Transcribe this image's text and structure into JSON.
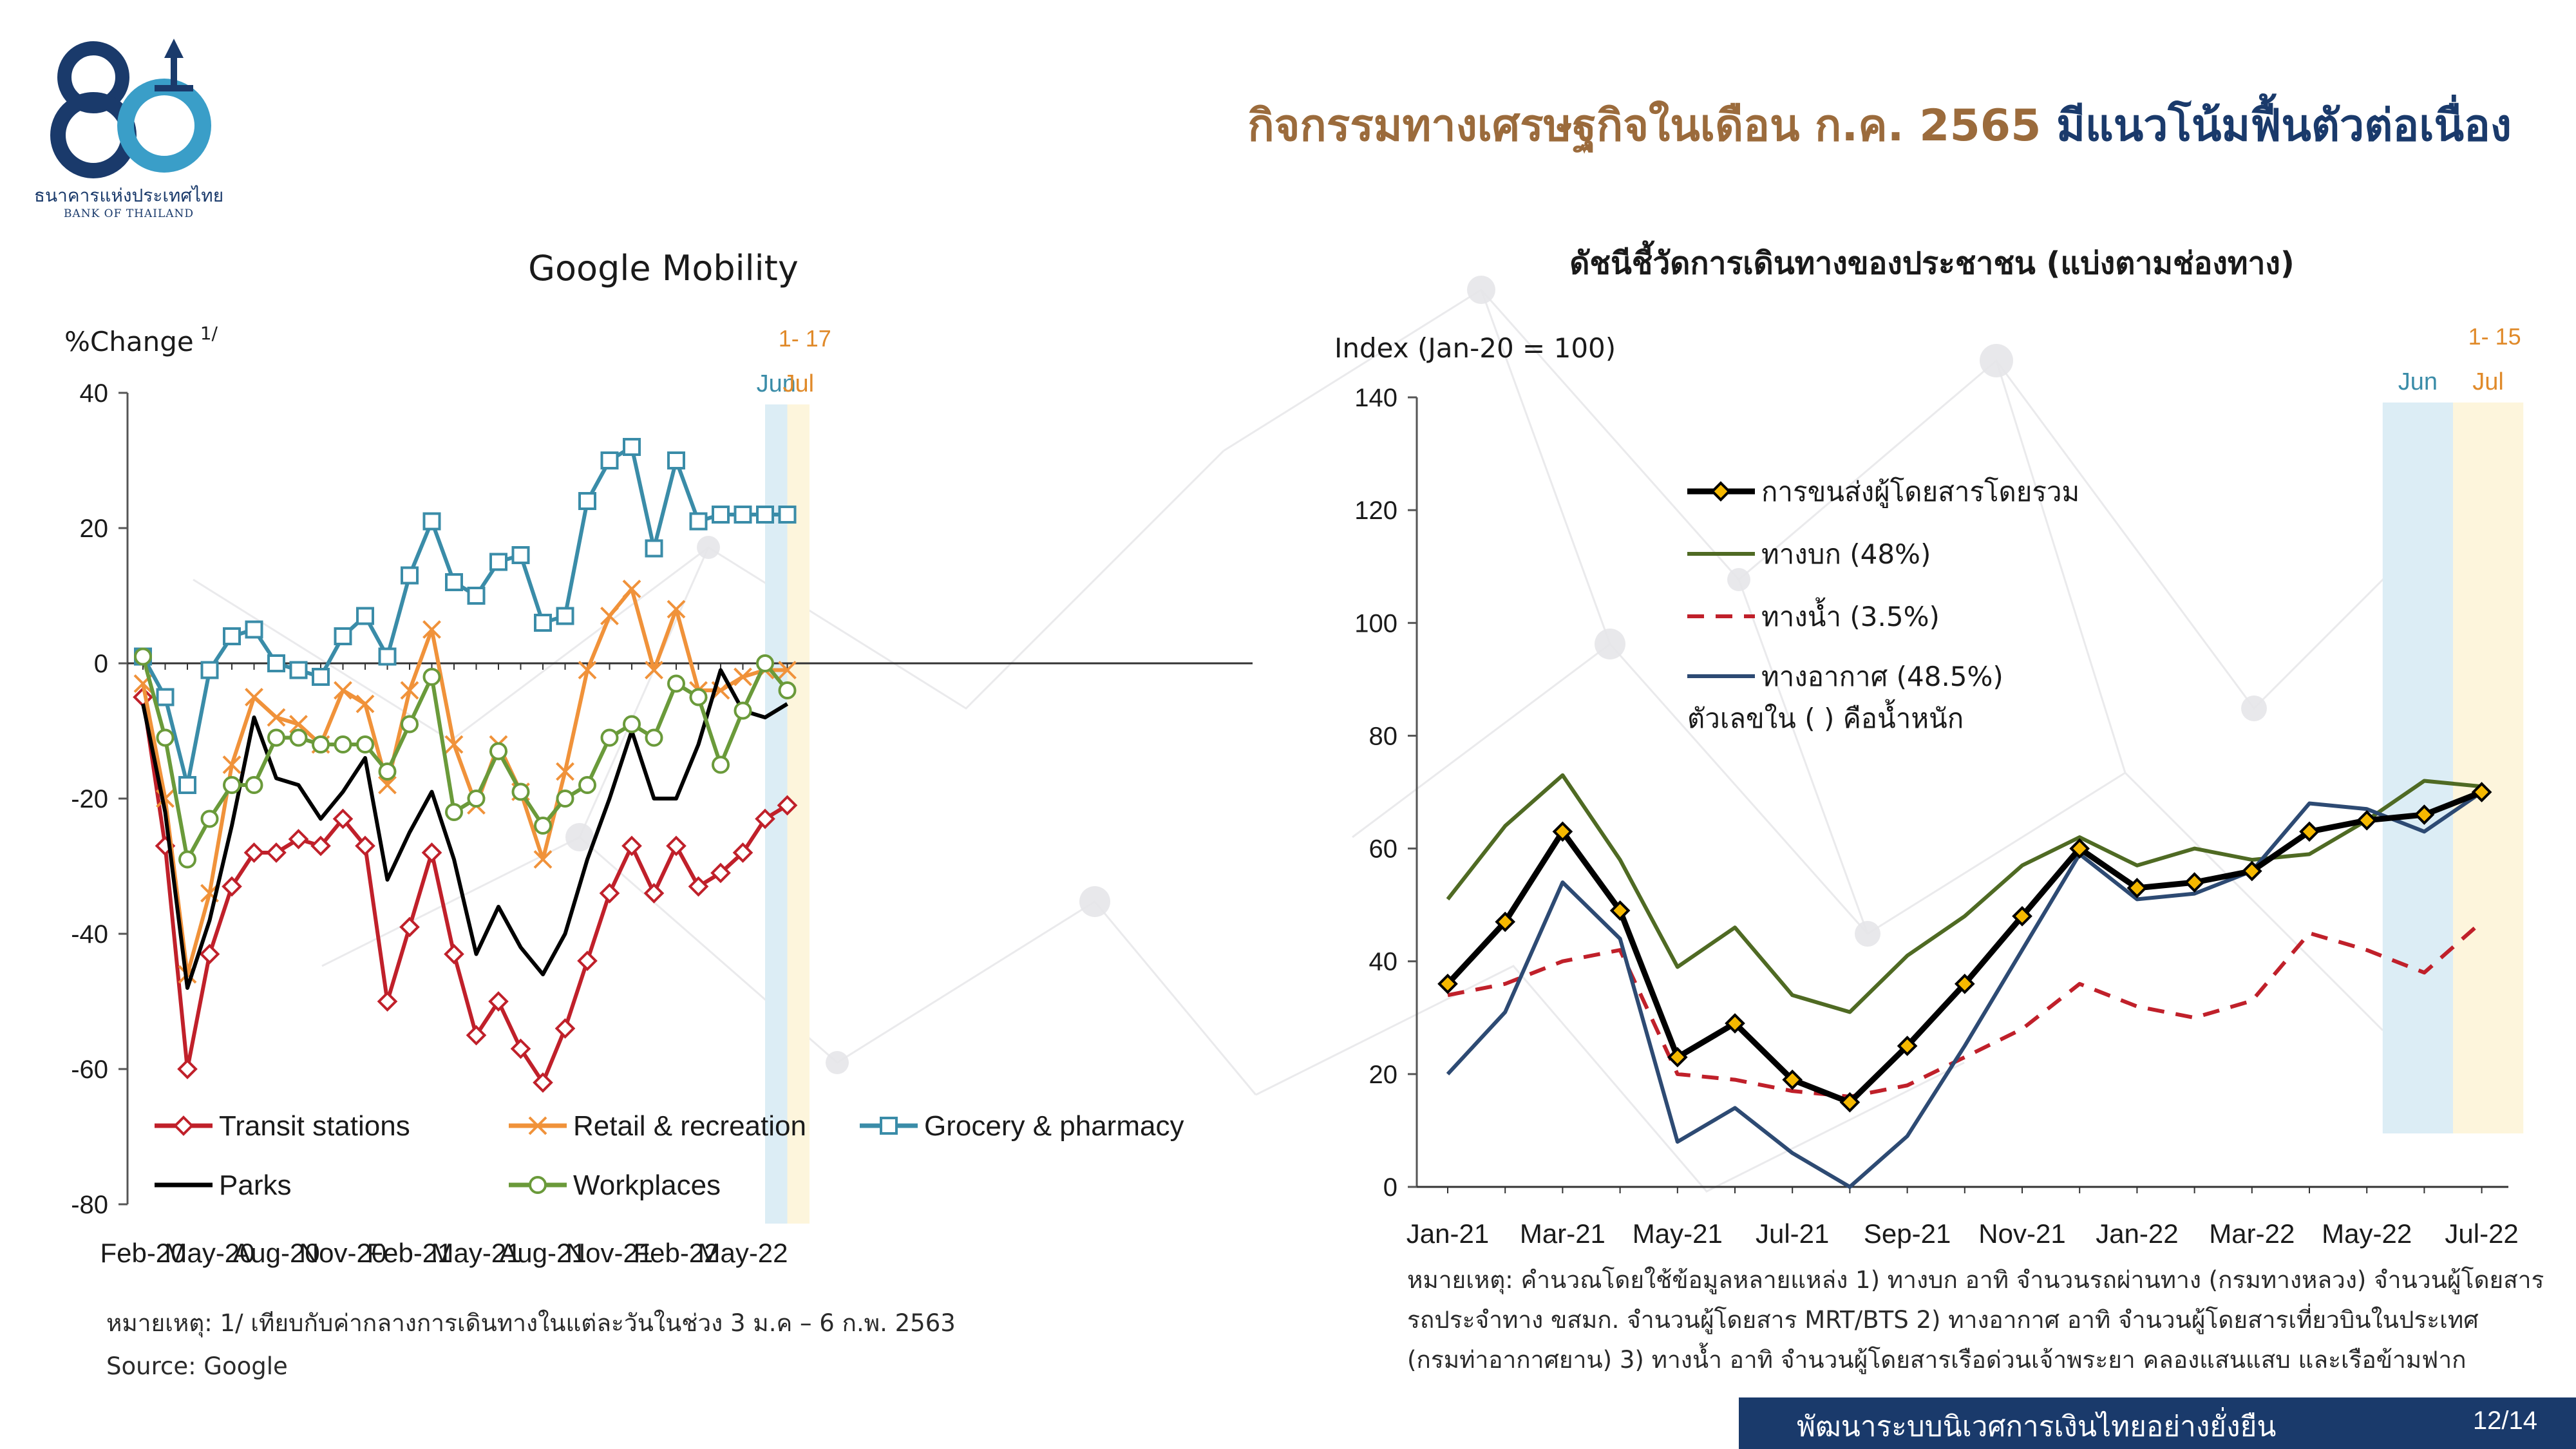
{
  "header": {
    "logo": {
      "label": "80",
      "org_th": "ธนาคารแห่งประเทศไทย",
      "org_en": "BANK OF THAILAND"
    },
    "title_part1": "กิจกรรมทางเศรษฐกิจในเดือน ก.ค. 2565",
    "title_part2": "มีแนวโน้มฟื้นตัวต่อเนื่อง",
    "colors": {
      "brown": "#9b6b3c",
      "navy": "#1a3a6b"
    }
  },
  "chart_data": [
    {
      "type": "line",
      "title": "Google Mobility",
      "ylabel": "%Change",
      "ylabel_sup": "1/",
      "ylim": [
        -80,
        40
      ],
      "yticks": [
        40,
        20,
        0,
        -20,
        -40,
        -60,
        -80
      ],
      "x_count": 30,
      "xtick_labels": [
        "Feb-20",
        "May-20",
        "Aug-20",
        "Nov-20",
        "Feb-21",
        "May-21",
        "Aug-21",
        "Nov-21",
        "Feb-22",
        "May-22"
      ],
      "xtick_index": [
        0,
        3,
        6,
        9,
        12,
        15,
        18,
        21,
        24,
        27
      ],
      "highlight": {
        "jun_label": "Jun",
        "jul_label": "Jul",
        "jul_range": "1- 17",
        "jun_index": 28.5,
        "jul_index": 29.5,
        "jun_color": "#dcedf5",
        "jul_color": "#fdf5dc"
      },
      "legend": {
        "position": "bottom-inside",
        "columns": 3
      },
      "series": [
        {
          "name": "Transit stations",
          "color": "#c0202a",
          "marker": "diamond",
          "values": [
            -5,
            -27,
            -60,
            -43,
            -33,
            -28,
            -28,
            -26,
            -27,
            -23,
            -27,
            -50,
            -39,
            -28,
            -43,
            -55,
            -50,
            -57,
            -62,
            -54,
            -44,
            -34,
            -27,
            -34,
            -27,
            -33,
            -31,
            -28,
            -23,
            -21
          ]
        },
        {
          "name": "Retail & recreation",
          "color": "#f0923a",
          "marker": "x",
          "values": [
            -3,
            -20,
            -46,
            -34,
            -15,
            -5,
            -8,
            -9,
            -12,
            -4,
            -6,
            -18,
            -4,
            5,
            -12,
            -21,
            -12,
            -19,
            -29,
            -16,
            -1,
            7,
            11,
            -1,
            8,
            -4,
            -4,
            -2,
            -1,
            -1
          ]
        },
        {
          "name": "Grocery & pharmacy",
          "color": "#3a8ca8",
          "marker": "square",
          "values": [
            1,
            -5,
            -18,
            -1,
            4,
            5,
            0,
            -1,
            -2,
            4,
            7,
            1,
            13,
            21,
            12,
            10,
            15,
            16,
            6,
            7,
            24,
            30,
            32,
            17,
            30,
            21,
            22,
            22,
            22,
            22
          ]
        },
        {
          "name": "Parks",
          "color": "#000000",
          "marker": "none",
          "values": [
            -6,
            -22,
            -48,
            -38,
            -24,
            -8,
            -17,
            -18,
            -23,
            -19,
            -14,
            -32,
            -25,
            -19,
            -29,
            -43,
            -36,
            -42,
            -46,
            -40,
            -29,
            -20,
            -10,
            -20,
            -20,
            -12,
            -1,
            -7,
            -8,
            -6
          ]
        },
        {
          "name": "Workplaces",
          "color": "#6a9a3a",
          "marker": "circle",
          "values": [
            1,
            -11,
            -29,
            -23,
            -18,
            -18,
            -11,
            -11,
            -12,
            -12,
            -12,
            -16,
            -9,
            -2,
            -22,
            -20,
            -13,
            -19,
            -24,
            -20,
            -18,
            -11,
            -9,
            -11,
            -3,
            -5,
            -15,
            -7,
            0,
            -4
          ]
        }
      ]
    },
    {
      "type": "line",
      "title": "ดัชนีชี้วัดการเดินทางของประชาชน (แบ่งตามช่องทาง)",
      "ylabel": "Index (Jan-20 = 100)",
      "ylim": [
        0,
        140
      ],
      "yticks": [
        140,
        120,
        100,
        80,
        60,
        40,
        20,
        0
      ],
      "x_count": 19,
      "xtick_labels": [
        "Jan-21",
        "Mar-21",
        "May-21",
        "Jul-21",
        "Sep-21",
        "Nov-21",
        "Jan-22",
        "Mar-22",
        "May-22",
        "Jul-22"
      ],
      "xtick_index": [
        0,
        2,
        4,
        6,
        8,
        10,
        12,
        14,
        16,
        18
      ],
      "highlight": {
        "jun_label": "Jun",
        "jul_label": "Jul",
        "jul_range": "1- 15",
        "jun_index": 17,
        "jul_index": 18,
        "jun_color": "#dcedf5",
        "jul_color": "#fdf5dc"
      },
      "legend": {
        "position": "top-left-inside",
        "columns": 1,
        "note": "ตัวเลขใน ( ) คือน้ำหนัก"
      },
      "series": [
        {
          "name": "ทางบก (48%)",
          "color": "#4f6a23",
          "style": "solid",
          "values": [
            51,
            64,
            73,
            58,
            39,
            46,
            34,
            31,
            41,
            48,
            57,
            62,
            57,
            60,
            58,
            59,
            65,
            72,
            71
          ]
        },
        {
          "name": "ทางน้ำ (3.5%)",
          "color": "#c0202a",
          "style": "dashed",
          "values": [
            34,
            36,
            40,
            42,
            20,
            19,
            17,
            16,
            18,
            23,
            28,
            36,
            32,
            30,
            33,
            45,
            42,
            38,
            47
          ]
        },
        {
          "name": "ทางอากาศ (48.5%)",
          "color": "#2d4a73",
          "style": "solid",
          "values": [
            20,
            31,
            54,
            44,
            8,
            14,
            6,
            0,
            9,
            25,
            42,
            59,
            51,
            52,
            56,
            68,
            67,
            63,
            70
          ]
        },
        {
          "name": "การขนส่งผู้โดยสารโดยรวม",
          "color": "#000000",
          "style": "bold",
          "marker": "diamond",
          "marker_color": "#f5b800",
          "values": [
            36,
            47,
            63,
            49,
            23,
            29,
            19,
            15,
            25,
            36,
            48,
            60,
            53,
            54,
            56,
            63,
            65,
            66,
            70
          ]
        }
      ]
    }
  ],
  "notes": {
    "left_note": "หมายเหตุ: 1/ เทียบกับค่ากลางการเดินทางในแต่ละวันในช่วง 3 ม.ค –  6 ก.พ. 2563",
    "left_source": "Source: Google",
    "right_note_1": "หมายเหตุ: คำนวณโดยใช้ข้อมูลหลายแหล่ง 1) ทางบก อาทิ จำนวนรถผ่านทาง (กรมทางหลวง) จำนวนผู้โดยสาร",
    "right_note_2": "รถประจำทาง ขสมก. จำนวนผู้โดยสาร MRT/BTS  2) ทางอากาศ อาทิ จำนวนผู้โดยสารเที่ยวบินในประเทศ",
    "right_note_3": "(กรมท่าอากาศยาน) 3) ทางน้ำ อาทิ จำนวนผู้โดยสารเรือด่วนเจ้าพระยา คลองแสนแสบ และเรือข้ามฟาก"
  },
  "footer": {
    "slogan": "พัฒนาระบบนิเวศการเงินไทยอย่างยั่งยืน",
    "page": "12/14",
    "color": "#1a3a6b"
  }
}
